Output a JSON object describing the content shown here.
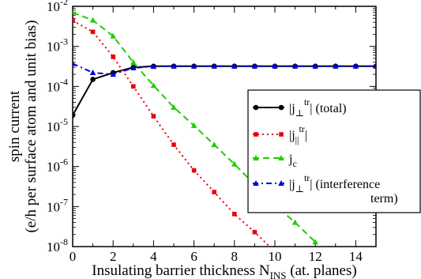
{
  "chart_data": {
    "type": "line",
    "title": "",
    "xlabel": "Insulating barrier thickness N",
    "xlabel_sub": "INS",
    "xlabel_suffix": " (at. planes)",
    "ylabel_line1": "spin current",
    "ylabel_line2": "(e/h per surface atom and unit bias)",
    "xlim": [
      0,
      15
    ],
    "ylim": [
      1e-08,
      0.01
    ],
    "yscale": "log",
    "x_ticks": [
      0,
      2,
      4,
      6,
      8,
      10,
      12,
      14
    ],
    "x_tick_labels": [
      "0",
      "2",
      "4",
      "6",
      "8",
      "10",
      "12",
      "14"
    ],
    "y_tick_exponents": [
      "-8",
      "-7",
      "-6",
      "-5",
      "-4",
      "-3",
      "-2"
    ],
    "y_tick_base": "10",
    "legend_position": "right",
    "series": [
      {
        "name": "|j⊥tr| (total)",
        "color": "#000000",
        "marker": "circle",
        "dash": "",
        "x": [
          0,
          1,
          2,
          3,
          4,
          5,
          6,
          7,
          8,
          9,
          10,
          11,
          12,
          13,
          14,
          15
        ],
        "y": [
          1.9e-05,
          0.00015,
          0.00022,
          0.0003,
          0.00032,
          0.00032,
          0.00032,
          0.00032,
          0.00032,
          0.00032,
          0.00032,
          0.00032,
          0.00032,
          0.00032,
          0.00032,
          0.00032
        ]
      },
      {
        "name": "|j∥tr|",
        "color": "#e8000b",
        "marker": "square",
        "dash": "2,4",
        "x": [
          0,
          1,
          2,
          3,
          4,
          5,
          6,
          7,
          8,
          9,
          10
        ],
        "y": [
          0.0044,
          0.0023,
          0.00055,
          0.0001,
          1.8e-05,
          3.5e-06,
          8e-07,
          2.3e-07,
          6.5e-08,
          2.3e-08,
          7.5e-09
        ]
      },
      {
        "name": "jc",
        "color": "#22cc00",
        "marker": "triangle-up",
        "dash": "8,5",
        "x": [
          0,
          1,
          2,
          3,
          4,
          5,
          6,
          7,
          8,
          9,
          10,
          11,
          12
        ],
        "y": [
          0.007,
          0.0045,
          0.0018,
          0.0004,
          0.000105,
          3e-05,
          1.05e-05,
          3.5e-06,
          1.15e-06,
          3.5e-07,
          1.1e-07,
          4e-08,
          1.3e-08
        ]
      },
      {
        "name": "|j⊥tr| (interference term)",
        "color": "#0000dd",
        "marker": "triangle-up",
        "dash": "7,4,2,4",
        "x": [
          0,
          1,
          2,
          3,
          4,
          5,
          6,
          7,
          8,
          9,
          10,
          11,
          12,
          13,
          14,
          15
        ],
        "y": [
          0.00037,
          0.00022,
          0.0002,
          0.00029,
          0.000315,
          0.00032,
          0.00032,
          0.00032,
          0.00032,
          0.00032,
          0.00032,
          0.00032,
          0.00032,
          0.00032,
          0.00032,
          0.00032
        ]
      }
    ],
    "legend": [
      {
        "base": "|j",
        "sub": "⊥",
        "sup": "tr",
        "tail": "| (total)",
        "tail2": ""
      },
      {
        "base": "|j",
        "sub": "||",
        "sup": "tr",
        "tail": "|",
        "tail2": ""
      },
      {
        "base": "j",
        "sub": "c",
        "sup": "",
        "tail": "",
        "tail2": ""
      },
      {
        "base": "|j",
        "sub": "⊥",
        "sup": "tr",
        "tail": "| (interference",
        "tail2": "term)"
      }
    ]
  }
}
